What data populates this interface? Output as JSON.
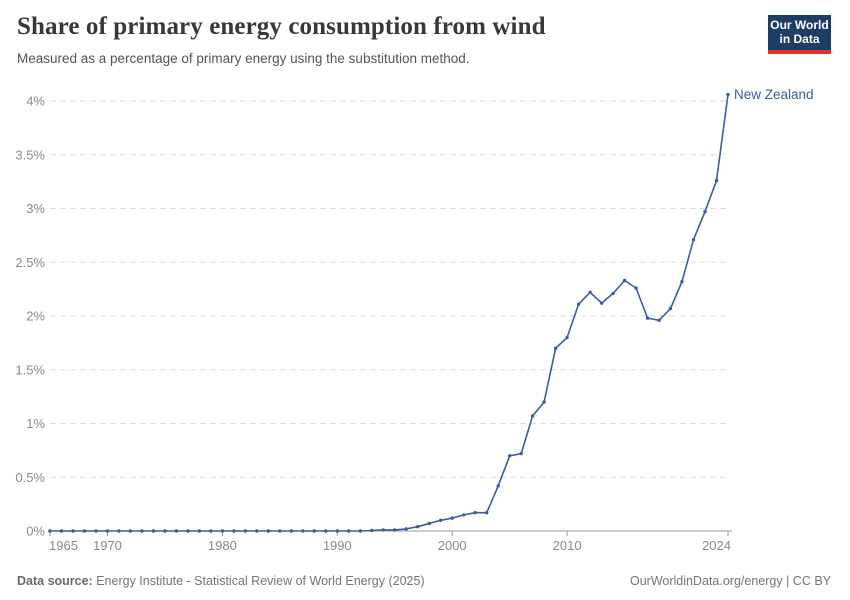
{
  "header": {
    "title": "Share of primary energy consumption from wind",
    "subtitle": "Measured as a percentage of primary energy using the substitution method."
  },
  "logo": {
    "text": "Our World\nin Data",
    "background_color": "#1d3d63",
    "accent_color": "#dc352b"
  },
  "chart_data": {
    "type": "line",
    "title": "Share of primary energy consumption from wind",
    "subtitle": "Measured as a percentage of primary energy using the substitution method.",
    "grid": "horizontal dashed",
    "legend_position": "end-of-line label",
    "xlim": [
      1965,
      2024
    ],
    "ylim": [
      0,
      4
    ],
    "xticks": [
      1965,
      1970,
      1980,
      1990,
      2000,
      2010,
      2024
    ],
    "yticks": [
      0,
      0.5,
      1,
      1.5,
      2,
      2.5,
      3,
      3.5,
      4
    ],
    "ytick_labels": [
      "0%",
      "0.5%",
      "1%",
      "1.5%",
      "2%",
      "2.5%",
      "3%",
      "3.5%",
      "4%"
    ],
    "xlabel": "",
    "ylabel": "",
    "line_color": "#3b5d9f",
    "grid_color": "#dddddd",
    "axis_color": "#9a9a9a",
    "tick_label_color": "#8a8a8a",
    "series": [
      {
        "name": "New Zealand",
        "x": [
          1965,
          1966,
          1967,
          1968,
          1969,
          1970,
          1971,
          1972,
          1973,
          1974,
          1975,
          1976,
          1977,
          1978,
          1979,
          1980,
          1981,
          1982,
          1983,
          1984,
          1985,
          1986,
          1987,
          1988,
          1989,
          1990,
          1991,
          1992,
          1993,
          1994,
          1995,
          1996,
          1997,
          1998,
          1999,
          2000,
          2001,
          2002,
          2003,
          2004,
          2005,
          2006,
          2007,
          2008,
          2009,
          2010,
          2011,
          2012,
          2013,
          2014,
          2015,
          2016,
          2017,
          2018,
          2019,
          2020,
          2021,
          2022,
          2023,
          2024
        ],
        "values": [
          0,
          0,
          0,
          0,
          0,
          0,
          0,
          0,
          0,
          0,
          0,
          0,
          0,
          0,
          0,
          0,
          0,
          0,
          0,
          0,
          0,
          0,
          0,
          0,
          0,
          0,
          0,
          0,
          0.005,
          0.01,
          0.01,
          0.02,
          0.04,
          0.07,
          0.1,
          0.12,
          0.15,
          0.17,
          0.17,
          0.42,
          0.7,
          0.72,
          1.07,
          1.2,
          1.7,
          1.8,
          2.11,
          2.22,
          2.12,
          2.21,
          2.33,
          2.26,
          1.98,
          1.96,
          2.07,
          2.32,
          2.71,
          2.97,
          3.26,
          4.06
        ]
      }
    ]
  },
  "footer": {
    "source_label": "Data source:",
    "source_text": "Energy Institute - Statistical Review of World Energy (2025)",
    "right_text": "OurWorldinData.org/energy | CC BY"
  }
}
